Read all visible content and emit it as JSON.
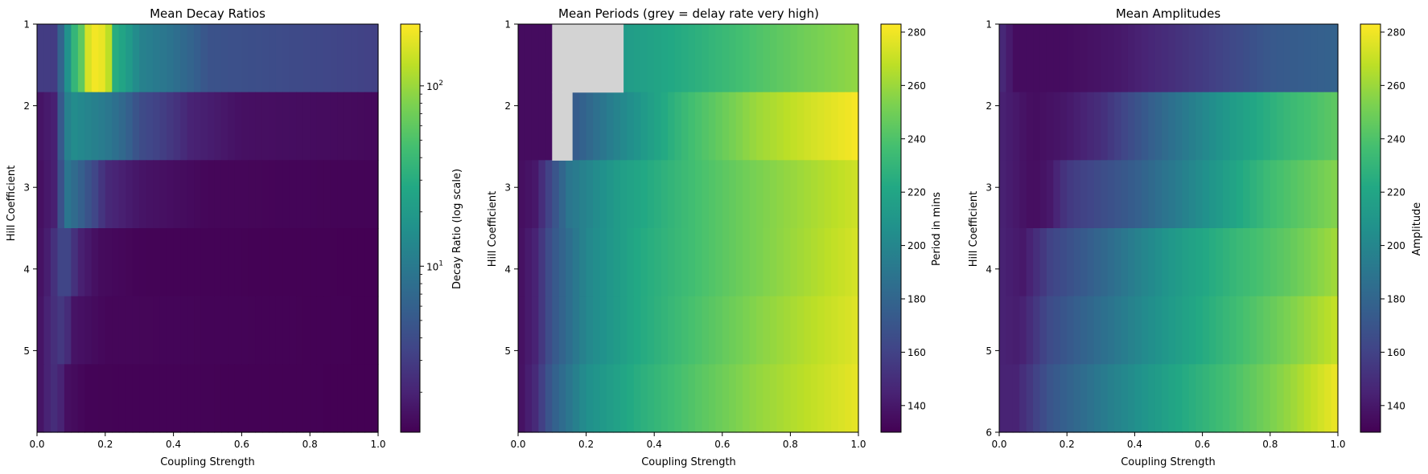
{
  "chart_data": [
    {
      "type": "heatmap",
      "title": "Mean Decay Ratios",
      "xlabel": "Coupling Strength",
      "ylabel": "Hill Coefficient",
      "xlim": [
        0.0,
        1.0
      ],
      "ylim": [
        1,
        6
      ],
      "xticks": [
        "0.0",
        "0.2",
        "0.4",
        "0.6",
        "0.8",
        "1.0"
      ],
      "yticks": [
        "1",
        "2",
        "3",
        "4",
        "5"
      ],
      "hill_rows": [
        1,
        2,
        3,
        4,
        5,
        6
      ],
      "colormap": "viridis",
      "colorbar": {
        "label": "Decay Ratio (log scale)",
        "scale": "log",
        "range": [
          1.2,
          220
        ],
        "major_ticks": [
          {
            "value": 10,
            "label": "10^1"
          },
          {
            "value": 100,
            "label": "10^2"
          }
        ]
      },
      "row_profiles": [
        [
          [
            0.0,
            3
          ],
          [
            0.05,
            3
          ],
          [
            0.08,
            8
          ],
          [
            0.1,
            25
          ],
          [
            0.13,
            60
          ],
          [
            0.16,
            210
          ],
          [
            0.2,
            180
          ],
          [
            0.23,
            30
          ],
          [
            0.3,
            12
          ],
          [
            0.5,
            4.5
          ],
          [
            1.0,
            3.2
          ]
        ],
        [
          [
            0.0,
            1.5
          ],
          [
            0.06,
            2
          ],
          [
            0.1,
            15
          ],
          [
            0.2,
            10
          ],
          [
            0.3,
            4
          ],
          [
            0.45,
            2
          ],
          [
            0.6,
            1.5
          ],
          [
            1.0,
            1.35
          ]
        ],
        [
          [
            0.0,
            1.4
          ],
          [
            0.06,
            2
          ],
          [
            0.09,
            9
          ],
          [
            0.14,
            5
          ],
          [
            0.2,
            2.2
          ],
          [
            0.3,
            1.6
          ],
          [
            0.5,
            1.3
          ],
          [
            1.0,
            1.25
          ]
        ],
        [
          [
            0.0,
            1.4
          ],
          [
            0.04,
            2
          ],
          [
            0.08,
            4
          ],
          [
            0.12,
            2
          ],
          [
            0.18,
            1.4
          ],
          [
            0.3,
            1.25
          ],
          [
            1.0,
            1.2
          ]
        ],
        [
          [
            0.0,
            1.4
          ],
          [
            0.04,
            2.2
          ],
          [
            0.08,
            3
          ],
          [
            0.1,
            1.6
          ],
          [
            0.2,
            1.3
          ],
          [
            1.0,
            1.2
          ]
        ],
        [
          [
            0.0,
            1.4
          ],
          [
            0.03,
            2
          ],
          [
            0.06,
            2.5
          ],
          [
            0.08,
            1.5
          ],
          [
            0.15,
            1.25
          ],
          [
            1.0,
            1.2
          ]
        ]
      ]
    },
    {
      "type": "heatmap",
      "title": "Mean Periods (grey = delay rate very high)",
      "xlabel": "Coupling Strength",
      "ylabel": "Hill Coefficient",
      "xlim": [
        0.0,
        1.0
      ],
      "ylim": [
        1,
        6
      ],
      "xticks": [
        "0.0",
        "0.2",
        "0.4",
        "0.6",
        "0.8",
        "1.0"
      ],
      "yticks": [
        "1",
        "2",
        "3",
        "4",
        "5"
      ],
      "hill_rows": [
        1,
        2,
        3,
        4,
        5,
        6
      ],
      "colormap": "viridis",
      "colorbar": {
        "label": "Period in mins",
        "scale": "linear",
        "range": [
          130,
          283
        ],
        "ticks": [
          140,
          160,
          180,
          200,
          220,
          240,
          260,
          280
        ]
      },
      "masked_color": "#d3d3d3",
      "masked_cells": [
        {
          "row": 1,
          "x_from": 0.1,
          "x_to": 0.31
        },
        {
          "row": 2,
          "x_from": 0.1,
          "x_to": 0.16
        }
      ],
      "row_profiles": [
        [
          [
            0.0,
            135
          ],
          [
            0.09,
            135
          ],
          [
            0.31,
            213
          ],
          [
            0.5,
            225
          ],
          [
            0.7,
            240
          ],
          [
            0.85,
            250
          ],
          [
            1.0,
            258
          ]
        ],
        [
          [
            0.0,
            135
          ],
          [
            0.09,
            135
          ],
          [
            0.16,
            172
          ],
          [
            0.3,
            200
          ],
          [
            0.5,
            235
          ],
          [
            0.7,
            260
          ],
          [
            0.85,
            272
          ],
          [
            1.0,
            282
          ]
        ],
        [
          [
            0.0,
            135
          ],
          [
            0.05,
            140
          ],
          [
            0.1,
            165
          ],
          [
            0.15,
            190
          ],
          [
            0.3,
            215
          ],
          [
            0.5,
            235
          ],
          [
            0.7,
            252
          ],
          [
            0.85,
            262
          ],
          [
            1.0,
            272
          ]
        ],
        [
          [
            0.0,
            135
          ],
          [
            0.05,
            145
          ],
          [
            0.1,
            170
          ],
          [
            0.2,
            200
          ],
          [
            0.35,
            222
          ],
          [
            0.5,
            235
          ],
          [
            0.7,
            252
          ],
          [
            0.85,
            263
          ],
          [
            1.0,
            274
          ]
        ],
        [
          [
            0.0,
            135
          ],
          [
            0.05,
            145
          ],
          [
            0.1,
            170
          ],
          [
            0.2,
            200
          ],
          [
            0.35,
            222
          ],
          [
            0.5,
            237
          ],
          [
            0.7,
            255
          ],
          [
            0.85,
            266
          ],
          [
            1.0,
            276
          ]
        ],
        [
          [
            0.0,
            135
          ],
          [
            0.05,
            148
          ],
          [
            0.1,
            175
          ],
          [
            0.2,
            205
          ],
          [
            0.35,
            225
          ],
          [
            0.5,
            240
          ],
          [
            0.7,
            258
          ],
          [
            0.85,
            268
          ],
          [
            1.0,
            278
          ]
        ]
      ]
    },
    {
      "type": "heatmap",
      "title": "Mean Amplitudes",
      "xlabel": "Coupling Strength",
      "ylabel": "Hill Coefficient",
      "xlim": [
        0.0,
        1.0
      ],
      "ylim": [
        1,
        6
      ],
      "xticks": [
        "0.0",
        "0.2",
        "0.4",
        "0.6",
        "0.8",
        "1.0"
      ],
      "yticks": [
        "1",
        "2",
        "3",
        "4",
        "5",
        "6"
      ],
      "hill_rows": [
        1,
        2,
        3,
        4,
        5,
        6
      ],
      "colormap": "viridis",
      "colorbar": {
        "label": "Amplitude",
        "scale": "linear",
        "range": [
          130,
          283
        ],
        "ticks": [
          140,
          160,
          180,
          200,
          220,
          240,
          260,
          280
        ]
      },
      "row_profiles": [
        [
          [
            0.0,
            150
          ],
          [
            0.05,
            135
          ],
          [
            0.2,
            135
          ],
          [
            0.35,
            140
          ],
          [
            0.5,
            150
          ],
          [
            0.65,
            160
          ],
          [
            0.8,
            172
          ],
          [
            1.0,
            178
          ]
        ],
        [
          [
            0.0,
            145
          ],
          [
            0.1,
            135
          ],
          [
            0.2,
            140
          ],
          [
            0.3,
            150
          ],
          [
            0.5,
            185
          ],
          [
            0.7,
            215
          ],
          [
            0.85,
            232
          ],
          [
            1.0,
            245
          ]
        ],
        [
          [
            0.0,
            145
          ],
          [
            0.1,
            135
          ],
          [
            0.15,
            140
          ],
          [
            0.2,
            155
          ],
          [
            0.4,
            175
          ],
          [
            0.6,
            205
          ],
          [
            0.8,
            235
          ],
          [
            1.0,
            255
          ]
        ],
        [
          [
            0.0,
            145
          ],
          [
            0.07,
            140
          ],
          [
            0.15,
            160
          ],
          [
            0.3,
            180
          ],
          [
            0.5,
            210
          ],
          [
            0.7,
            232
          ],
          [
            0.85,
            245
          ],
          [
            1.0,
            262
          ]
        ],
        [
          [
            0.0,
            145
          ],
          [
            0.06,
            142
          ],
          [
            0.15,
            165
          ],
          [
            0.3,
            185
          ],
          [
            0.5,
            212
          ],
          [
            0.7,
            235
          ],
          [
            0.85,
            252
          ],
          [
            1.0,
            270
          ]
        ],
        [
          [
            0.0,
            145
          ],
          [
            0.05,
            145
          ],
          [
            0.15,
            170
          ],
          [
            0.3,
            192
          ],
          [
            0.5,
            218
          ],
          [
            0.7,
            240
          ],
          [
            0.85,
            258
          ],
          [
            1.0,
            280
          ]
        ]
      ]
    }
  ]
}
